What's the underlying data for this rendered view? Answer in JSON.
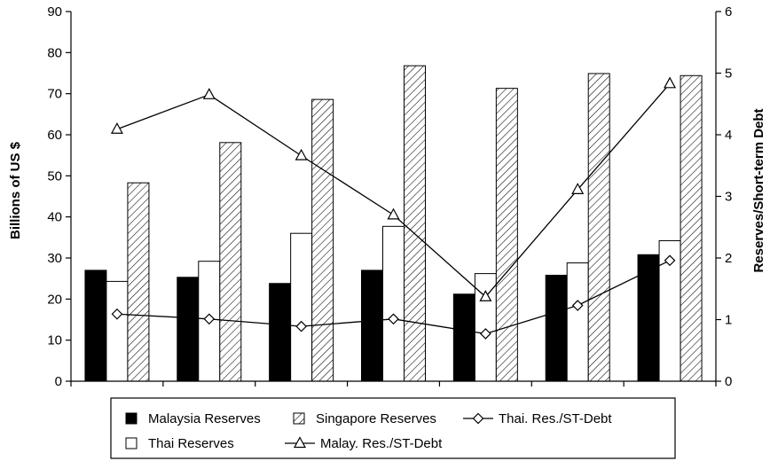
{
  "chart_data": {
    "type": "bar",
    "title": "",
    "categories": [
      "",
      "",
      "",
      "",
      "",
      "",
      ""
    ],
    "ylabel": "Billions of US $",
    "ylabel_right": "Reserves/Short-term Debt",
    "ylim": [
      0,
      90
    ],
    "y_ticks": [
      0,
      10,
      20,
      30,
      40,
      50,
      60,
      70,
      80,
      90
    ],
    "ylim_right": [
      0,
      6
    ],
    "y_ticks_right": [
      0,
      1,
      2,
      3,
      4,
      5,
      6
    ],
    "grid": false,
    "legend_position": "bottom",
    "series": [
      {
        "name": "Malaysia Reserves",
        "axis": "left",
        "kind": "bar",
        "fill": "solid",
        "color": "#000000",
        "values": [
          27,
          25.3,
          23.8,
          27,
          21.2,
          25.8,
          30.8
        ]
      },
      {
        "name": "Thai Reserves",
        "axis": "left",
        "kind": "bar",
        "fill": "hollow",
        "color": "#ffffff",
        "values": [
          24.3,
          29.2,
          36,
          37.7,
          26.2,
          28.8,
          34.2
        ]
      },
      {
        "name": "Singapore Reserves",
        "axis": "left",
        "kind": "bar",
        "fill": "hatched",
        "color": "#ffffff",
        "values": [
          48.3,
          58.1,
          68.6,
          76.8,
          71.3,
          74.9,
          74.4
        ]
      },
      {
        "name": "Thai. Res./ST-Debt",
        "axis": "right",
        "kind": "line",
        "marker": "diamond",
        "color": "#000000",
        "values": [
          1.09,
          1.01,
          0.89,
          1.01,
          0.77,
          1.23,
          1.96
        ]
      },
      {
        "name": "Malay. Res./ST-Debt",
        "axis": "right",
        "kind": "line",
        "marker": "triangle",
        "color": "#000000",
        "values": [
          4.09,
          4.65,
          3.66,
          2.7,
          1.37,
          3.11,
          4.83
        ]
      }
    ]
  }
}
